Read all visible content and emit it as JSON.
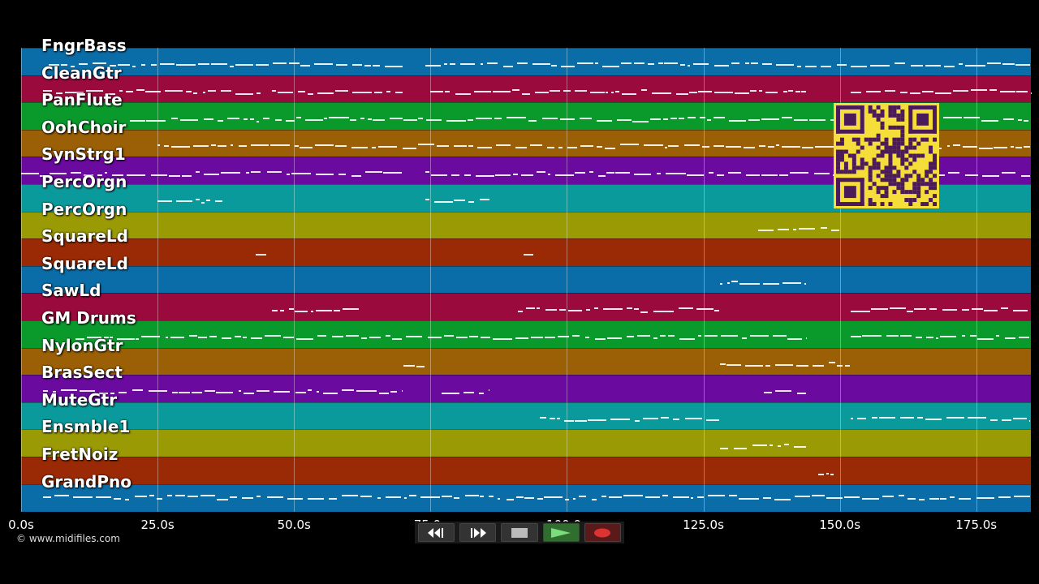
{
  "tracks": [
    {
      "name": "FngrBass",
      "color": "#0a6da8"
    },
    {
      "name": "CleanGtr",
      "color": "#9b0a3c"
    },
    {
      "name": "PanFlute",
      "color": "#0a9a2c"
    },
    {
      "name": "OohChoir",
      "color": "#9b5f05"
    },
    {
      "name": "SynStrg1",
      "color": "#6a0a9e"
    },
    {
      "name": "PercOrgn",
      "color": "#0a9a9c"
    },
    {
      "name": "PercOrgn",
      "color": "#9a9a05"
    },
    {
      "name": "SquareLd",
      "color": "#9a2a05"
    },
    {
      "name": "SquareLd",
      "color": "#0a6da8"
    },
    {
      "name": "SawLd",
      "color": "#9b0a3c"
    },
    {
      "name": "GM Drums",
      "color": "#0a9a2c"
    },
    {
      "name": "NylonGtr",
      "color": "#9b5f05"
    },
    {
      "name": "BrasSect",
      "color": "#6a0a9e"
    },
    {
      "name": "MuteGtr",
      "color": "#0a9a9c"
    },
    {
      "name": "Ensmble1",
      "color": "#9a9a05"
    },
    {
      "name": "FretNoiz",
      "color": "#9a2a05"
    },
    {
      "name": "GrandPno",
      "color": "#0a6da8"
    }
  ],
  "x_axis": {
    "ticks": [
      "0.0s",
      "25.0s",
      "50.0s",
      "75.0s",
      "100.0s",
      "125.0s",
      "150.0s",
      "175.0s"
    ],
    "tick_values": [
      0,
      25,
      50,
      75,
      100,
      125,
      150,
      175
    ],
    "max_seconds": 185
  },
  "note_activity": [
    {
      "lane": 0,
      "ranges": [
        [
          5,
          70
        ],
        [
          74,
          185
        ]
      ]
    },
    {
      "lane": 1,
      "ranges": [
        [
          4,
          44
        ],
        [
          46,
          70
        ],
        [
          75,
          144
        ],
        [
          152,
          185
        ]
      ]
    },
    {
      "lane": 2,
      "ranges": [
        [
          20,
          70
        ],
        [
          70,
          185
        ]
      ]
    },
    {
      "lane": 3,
      "ranges": [
        [
          25,
          185
        ]
      ]
    },
    {
      "lane": 4,
      "ranges": [
        [
          0,
          44
        ],
        [
          45,
          70
        ],
        [
          74,
          185
        ]
      ]
    },
    {
      "lane": 5,
      "ranges": [
        [
          25,
          37
        ],
        [
          74,
          86
        ]
      ]
    },
    {
      "lane": 6,
      "ranges": [
        [
          135,
          150
        ]
      ]
    },
    {
      "lane": 7,
      "ranges": [
        [
          43,
          45
        ],
        [
          92,
          94
        ]
      ]
    },
    {
      "lane": 8,
      "ranges": [
        [
          128,
          144
        ]
      ]
    },
    {
      "lane": 9,
      "ranges": [
        [
          46,
          62
        ],
        [
          91,
          128
        ],
        [
          152,
          185
        ]
      ]
    },
    {
      "lane": 10,
      "ranges": [
        [
          10,
          144
        ],
        [
          152,
          185
        ]
      ]
    },
    {
      "lane": 11,
      "ranges": [
        [
          70,
          74
        ],
        [
          128,
          152
        ]
      ]
    },
    {
      "lane": 12,
      "ranges": [
        [
          4,
          70
        ],
        [
          77,
          86
        ],
        [
          136,
          144
        ]
      ]
    },
    {
      "lane": 13,
      "ranges": [
        [
          95,
          128
        ],
        [
          152,
          185
        ]
      ]
    },
    {
      "lane": 14,
      "ranges": [
        [
          128,
          144
        ]
      ]
    },
    {
      "lane": 15,
      "ranges": [
        [
          146,
          149
        ]
      ]
    },
    {
      "lane": 16,
      "ranges": [
        [
          4,
          44
        ],
        [
          45,
          185
        ]
      ]
    }
  ],
  "copyright": "© www.midifiles.com",
  "transport": {
    "rewind_icon": "rewind-icon",
    "fast_forward_icon": "fast-forward-icon",
    "stop_icon": "stop-icon",
    "play_icon": "play-icon",
    "record_icon": "record-icon"
  },
  "colors": {
    "background": "#000000",
    "qr": "#f5dd3a",
    "qr_dark": "#4a1a5a"
  }
}
